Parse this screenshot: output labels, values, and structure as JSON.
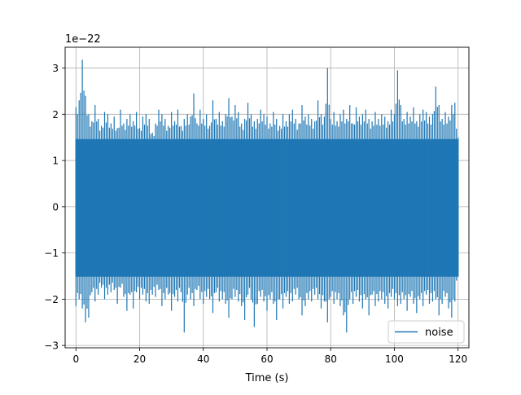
{
  "chart_data": {
    "type": "line",
    "title": "",
    "xlabel": "Time (s)",
    "ylabel": "",
    "offset_label": "1e−22",
    "xlim": [
      -3.4,
      123.4
    ],
    "ylim": [
      -3.05,
      3.45
    ],
    "xticks": [
      0,
      20,
      40,
      60,
      80,
      100,
      120
    ],
    "xtick_labels": [
      "0",
      "20",
      "40",
      "60",
      "80",
      "100",
      "120"
    ],
    "yticks": [
      -3,
      -2,
      -1,
      0,
      1,
      2,
      3
    ],
    "ytick_labels": [
      "−3",
      "−2",
      "−1",
      "0",
      "1",
      "2",
      "3"
    ],
    "grid": true,
    "legend_position": "lower-right",
    "series": [
      {
        "name": "noise",
        "color": "#1f77b4",
        "x_range": [
          0,
          120
        ],
        "envelope_max": [
          2.15,
          2.3,
          3.18,
          2.4,
          2.0,
          1.85,
          2.2,
          1.9,
          1.75,
          2.05,
          2.0,
          1.8,
          1.95,
          1.7,
          2.1,
          1.8,
          1.9,
          2.0,
          1.85,
          2.05,
          1.7,
          1.95,
          2.0,
          1.9,
          1.6,
          1.8,
          2.1,
          2.0,
          1.9,
          1.75,
          2.05,
          1.85,
          2.1,
          1.75,
          1.9,
          2.0,
          1.95,
          2.45,
          1.8,
          2.1,
          1.9,
          2.0,
          1.75,
          2.3,
          1.9,
          2.05,
          1.85,
          2.0,
          2.35,
          1.95,
          2.2,
          2.05,
          1.8,
          1.9,
          2.25,
          2.0,
          1.85,
          1.9,
          2.1,
          2.0,
          1.95,
          1.8,
          2.05,
          1.9,
          1.75,
          2.0,
          1.85,
          2.0,
          2.1,
          1.9,
          1.8,
          2.2,
          1.95,
          2.0,
          1.9,
          1.85,
          2.3,
          2.0,
          1.95,
          3.0,
          1.9,
          2.05,
          1.85,
          2.0,
          2.1,
          1.9,
          2.2,
          1.8,
          2.15,
          1.95,
          2.0,
          2.1,
          1.9,
          1.85,
          2.05,
          1.9,
          2.0,
          1.95,
          1.85,
          2.1,
          2.0,
          2.95,
          2.2,
          1.9,
          2.05,
          1.95,
          2.15,
          1.85,
          2.0,
          2.1,
          2.05,
          1.95,
          2.0,
          2.6,
          2.2,
          1.9,
          2.05,
          1.95,
          2.2,
          2.25,
          1.5
        ],
        "envelope_min": [
          -2.15,
          -2.0,
          -2.2,
          -2.5,
          -2.4,
          -1.85,
          -2.05,
          -1.9,
          -1.75,
          -2.0,
          -1.9,
          -1.85,
          -1.8,
          -2.1,
          -1.75,
          -1.95,
          -2.25,
          -1.9,
          -2.2,
          -1.85,
          -2.0,
          -1.9,
          -2.05,
          -2.1,
          -1.9,
          -1.95,
          -1.8,
          -2.15,
          -2.0,
          -1.9,
          -2.25,
          -1.95,
          -2.05,
          -1.85,
          -2.72,
          -1.9,
          -2.0,
          -2.15,
          -1.8,
          -2.0,
          -2.1,
          -1.95,
          -2.0,
          -2.3,
          -1.85,
          -2.05,
          -2.0,
          -2.1,
          -2.4,
          -2.0,
          -1.95,
          -2.05,
          -2.15,
          -2.45,
          -1.9,
          -2.0,
          -2.6,
          -2.1,
          -1.95,
          -2.05,
          -2.25,
          -2.0,
          -2.1,
          -2.45,
          -2.0,
          -2.2,
          -1.95,
          -2.1,
          -2.05,
          -1.9,
          -2.0,
          -2.35,
          -2.15,
          -2.0,
          -2.05,
          -1.9,
          -2.0,
          -2.2,
          -2.05,
          -2.5,
          -1.95,
          -2.1,
          -2.0,
          -2.15,
          -2.35,
          -2.72,
          -2.0,
          -2.1,
          -1.95,
          -2.05,
          -2.2,
          -2.0,
          -2.35,
          -1.9,
          -2.15,
          -2.05,
          -2.0,
          -2.1,
          -2.2,
          -1.95,
          -2.0,
          -2.15,
          -2.1,
          -2.0,
          -2.25,
          -1.95,
          -2.1,
          -2.3,
          -2.0,
          -2.15,
          -1.9,
          -2.1,
          -2.05,
          -2.0,
          -2.35,
          -2.1,
          -1.95,
          -2.2,
          -2.4,
          -2.05,
          -1.5
        ]
      }
    ]
  }
}
